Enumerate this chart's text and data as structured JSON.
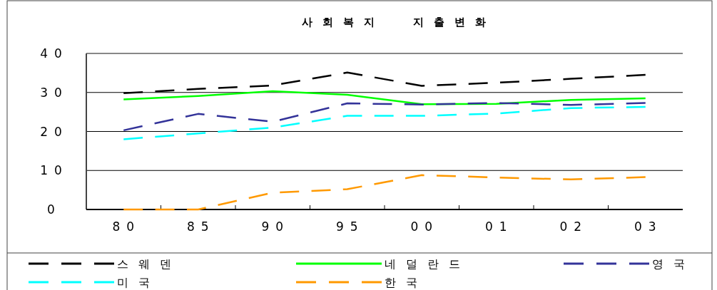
{
  "chart_data": {
    "type": "line",
    "title": "사회복지 지출변화",
    "categories": [
      "80",
      "85",
      "90",
      "95",
      "00",
      "01",
      "02",
      "03"
    ],
    "ylim": [
      0,
      40
    ],
    "yticks": [
      0,
      10,
      20,
      30,
      40
    ],
    "grid": "y",
    "legend": "bottom",
    "marker": "none",
    "series": [
      {
        "name": "스웨덴",
        "color": "#000000",
        "line_style": "dashed",
        "values": [
          29.8,
          30.9,
          31.8,
          35.1,
          31.7,
          32.5,
          33.5,
          34.5
        ]
      },
      {
        "name": "네덜란드",
        "color": "#00ff00",
        "line_style": "solid",
        "values": [
          28.2,
          29.1,
          30.3,
          29.4,
          27.0,
          27.1,
          28.1,
          28.5
        ]
      },
      {
        "name": "영국",
        "color": "#333399",
        "line_style": "dashed",
        "values": [
          20.3,
          24.5,
          22.5,
          27.2,
          26.9,
          27.3,
          26.8,
          27.3
        ]
      },
      {
        "name": "미국",
        "color": "#00ffff",
        "line_style": "dashed",
        "values": [
          18.0,
          19.5,
          21.0,
          24.0,
          24.0,
          24.6,
          26.0,
          26.3
        ]
      },
      {
        "name": "한국",
        "color": "#ff9900",
        "line_style": "dashed",
        "values": [
          0,
          0,
          4.3,
          5.2,
          8.8,
          8.2,
          7.7,
          8.3
        ]
      }
    ]
  }
}
